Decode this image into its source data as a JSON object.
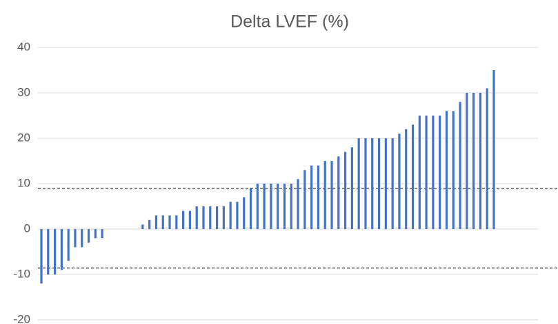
{
  "chart_data": {
    "type": "bar",
    "title": "Delta LVEF (%)",
    "categories": [
      null,
      null,
      null,
      null,
      null,
      null,
      null,
      null,
      null,
      null,
      null,
      null,
      null,
      null,
      null,
      null,
      null,
      null,
      null,
      null,
      null,
      null,
      null,
      null,
      null,
      null,
      null,
      null,
      null,
      null,
      null,
      null,
      null,
      null,
      null,
      null,
      null,
      null,
      null,
      null,
      null,
      null,
      null,
      null,
      null,
      null,
      null,
      null,
      null,
      null,
      null,
      null,
      null,
      null,
      null,
      null,
      null,
      null,
      null,
      null,
      null,
      null,
      null,
      null,
      null,
      null,
      null,
      null
    ],
    "values": [
      -12,
      -10,
      -10,
      -9,
      -7,
      -4,
      -4,
      -3,
      -2,
      -2,
      0,
      0,
      0,
      0,
      0,
      1,
      2,
      3,
      3,
      3,
      3,
      4,
      4,
      5,
      5,
      5,
      5,
      5,
      6,
      6,
      7,
      9,
      10,
      10,
      10,
      10,
      10,
      10,
      11,
      13,
      14,
      14,
      15,
      15,
      16,
      17,
      18,
      20,
      20,
      20,
      20,
      20,
      20,
      21,
      22,
      23,
      25,
      25,
      25,
      25,
      26,
      26,
      28,
      30,
      30,
      30,
      31,
      35
    ],
    "color": "#4472c4",
    "ylim": [
      -20,
      40
    ],
    "yticks": [
      -20,
      -10,
      0,
      10,
      20,
      30,
      40
    ],
    "grid": true,
    "reference_lines": [
      9,
      -8.6
    ]
  }
}
